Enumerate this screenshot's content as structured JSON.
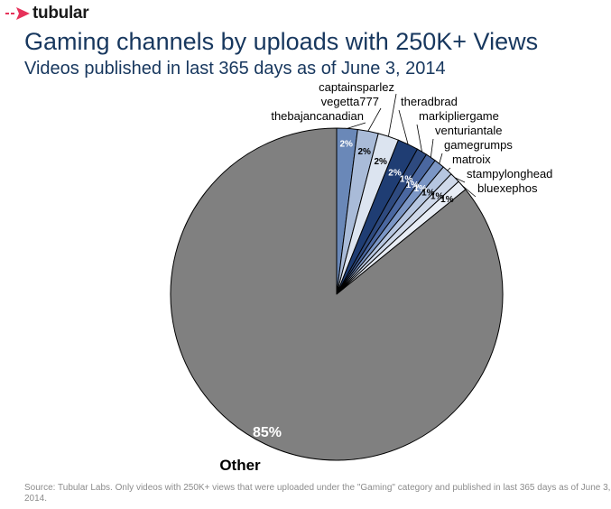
{
  "brand": {
    "name": "tubular",
    "accent": "#e6325a"
  },
  "header": {
    "title": "Gaming channels by uploads with 250K+ Views",
    "subtitle": "Videos published in last 365 days as of June 3, 2014"
  },
  "footer": {
    "source": "Source: Tubular Labs. Only videos with 250K+ views that were uploaded under the \"Gaming\" category and published in last 365 days as of June 3, 2014."
  },
  "chart_data": {
    "type": "pie",
    "start_angle_deg": 0,
    "direction": "clockwise",
    "slices": [
      {
        "label": "thebajancanadian",
        "value": 2,
        "display": "2%",
        "color": "#6a88b8",
        "label_color": "#ffffff"
      },
      {
        "label": "vegetta777",
        "value": 2,
        "display": "2%",
        "color": "#a9bbd8",
        "label_color": "#000000"
      },
      {
        "label": "captainsparlez",
        "value": 2,
        "display": "2%",
        "color": "#dce4f0",
        "label_color": "#000000"
      },
      {
        "label": "theradbrad",
        "value": 2,
        "display": "2%",
        "color": "#1f3d73",
        "label_color": "#ffffff"
      },
      {
        "label": "markipliergame",
        "value": 1,
        "display": "1%",
        "color": "#2e4a7f",
        "label_color": "#ffffff"
      },
      {
        "label": "venturiantale",
        "value": 1,
        "display": "1%",
        "color": "#4a67a0",
        "label_color": "#ffffff"
      },
      {
        "label": "gamegrumps",
        "value": 1,
        "display": "1%",
        "color": "#7b96c5",
        "label_color": "#ffffff"
      },
      {
        "label": "matroix",
        "value": 1,
        "display": "1%",
        "color": "#b6c6e0",
        "label_color": "#000000"
      },
      {
        "label": "stampylonghead",
        "value": 1,
        "display": "1%",
        "color": "#cfd9ea",
        "label_color": "#000000"
      },
      {
        "label": "bluexephos",
        "value": 1,
        "display": "1%",
        "color": "#e8edf5",
        "label_color": "#000000"
      },
      {
        "label": "Other",
        "value": 85,
        "display": "85%",
        "color": "#808080",
        "label_color": "#ffffff"
      }
    ]
  }
}
